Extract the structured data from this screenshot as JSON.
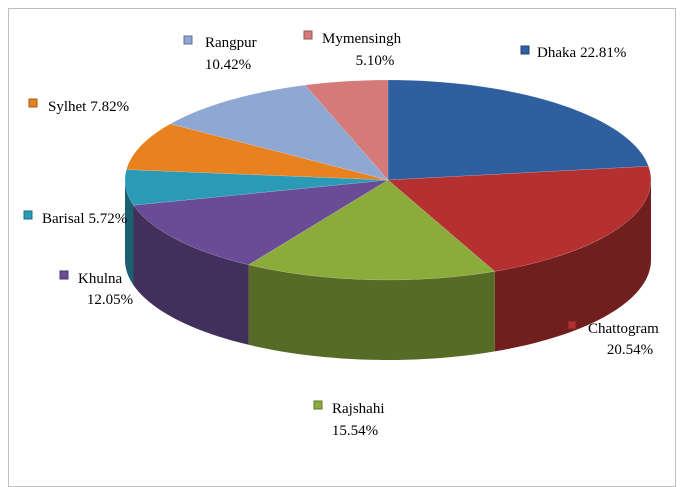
{
  "chart_data": {
    "type": "pie3d",
    "categories": [
      "Dhaka",
      "Chattogram",
      "Rajshahi",
      "Khulna",
      "Barisal",
      "Sylhet",
      "Rangpur",
      "Mymensingh"
    ],
    "values": [
      22.81,
      20.54,
      15.54,
      12.05,
      5.72,
      7.82,
      10.42,
      5.1
    ],
    "value_labels": [
      "22.81%",
      "20.54%",
      "15.54%",
      "12.05%",
      "5.72%",
      "7.82%",
      "10.42%",
      "5.10%"
    ],
    "colors": [
      "#2f5f9e",
      "#b53131",
      "#8bac3b",
      "#6a4b95",
      "#2b9ab7",
      "#e8821f",
      "#8fa7d3",
      "#d47b7a"
    ]
  }
}
